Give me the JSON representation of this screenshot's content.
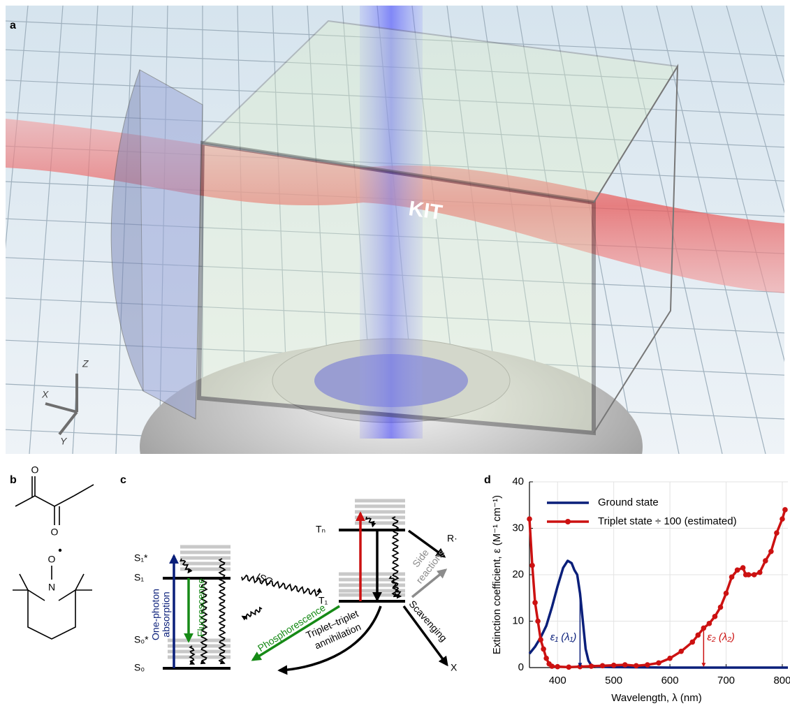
{
  "panels": [
    "a",
    "b",
    "c",
    "d"
  ],
  "scene": {
    "axes": [
      "X",
      "Y",
      "Z"
    ],
    "logo": "KIT"
  },
  "molecules": {
    "atoms": [
      "O",
      "O",
      "O",
      "N"
    ]
  },
  "diagram": {
    "levels": {
      "S1star": "S₁*",
      "S1": "S₁",
      "S0star": "S₀*",
      "S0": "S₀",
      "Tn": "Tₙ",
      "T1": "T₁",
      "R": "R·",
      "X": "X"
    },
    "processes": {
      "absorption": [
        "One-photon",
        "absorption"
      ],
      "fluorescence": "Fluorescence",
      "isc": "ISC",
      "phosphorescence": "Phosphorescence",
      "tta": [
        "Triplet–triplet",
        "annihilation"
      ],
      "side": [
        "Side",
        "reactions"
      ],
      "scavenging": "Scavenging"
    }
  },
  "chart_data": {
    "type": "line",
    "xlabel": "Wavelength, λ (nm)",
    "ylabel": "Extinction coefficient, ε (M⁻¹ cm⁻¹)",
    "xlim": [
      350,
      810
    ],
    "ylim": [
      0,
      40
    ],
    "xticks": [
      400,
      500,
      600,
      700,
      800
    ],
    "yticks": [
      0,
      10,
      20,
      30,
      40
    ],
    "grid": true,
    "legend": "upper left",
    "series": [
      {
        "name": "Ground state",
        "color": "#0a1f7a",
        "markers": false,
        "x": [
          350,
          360,
          370,
          380,
          390,
          400,
          410,
          418,
          425,
          430,
          435,
          440,
          445,
          450,
          455,
          460,
          470,
          500,
          600,
          700,
          810
        ],
        "values": [
          3,
          4.5,
          6.5,
          9,
          13,
          17.5,
          21.5,
          23,
          22.5,
          21,
          20,
          16,
          10,
          4,
          1.5,
          0.5,
          0.2,
          0.1,
          0,
          0,
          0
        ]
      },
      {
        "name": "Triplet state ÷ 100 (estimated)",
        "color": "#cc1111",
        "markers": true,
        "x": [
          350,
          355,
          360,
          365,
          370,
          375,
          380,
          385,
          390,
          400,
          420,
          440,
          460,
          480,
          500,
          520,
          540,
          560,
          580,
          600,
          620,
          640,
          650,
          660,
          670,
          680,
          690,
          700,
          710,
          720,
          730,
          735,
          740,
          750,
          760,
          770,
          780,
          790,
          800,
          805
        ],
        "values": [
          32,
          22,
          14,
          10,
          6,
          4,
          2,
          0.8,
          0.3,
          0.2,
          0.1,
          0.2,
          0.3,
          0.4,
          0.5,
          0.6,
          0.4,
          0.6,
          1,
          2,
          3.5,
          5.5,
          7,
          8.5,
          9.5,
          11,
          13,
          16,
          19.5,
          21,
          21.5,
          20,
          20,
          20,
          20.5,
          23,
          25,
          29,
          32,
          34
        ]
      }
    ],
    "annotations": [
      {
        "text": "ε₁ (λ₁)",
        "x": 440,
        "series": 0
      },
      {
        "text": "ε₂ (λ₂)",
        "x": 660,
        "series": 1
      }
    ]
  }
}
